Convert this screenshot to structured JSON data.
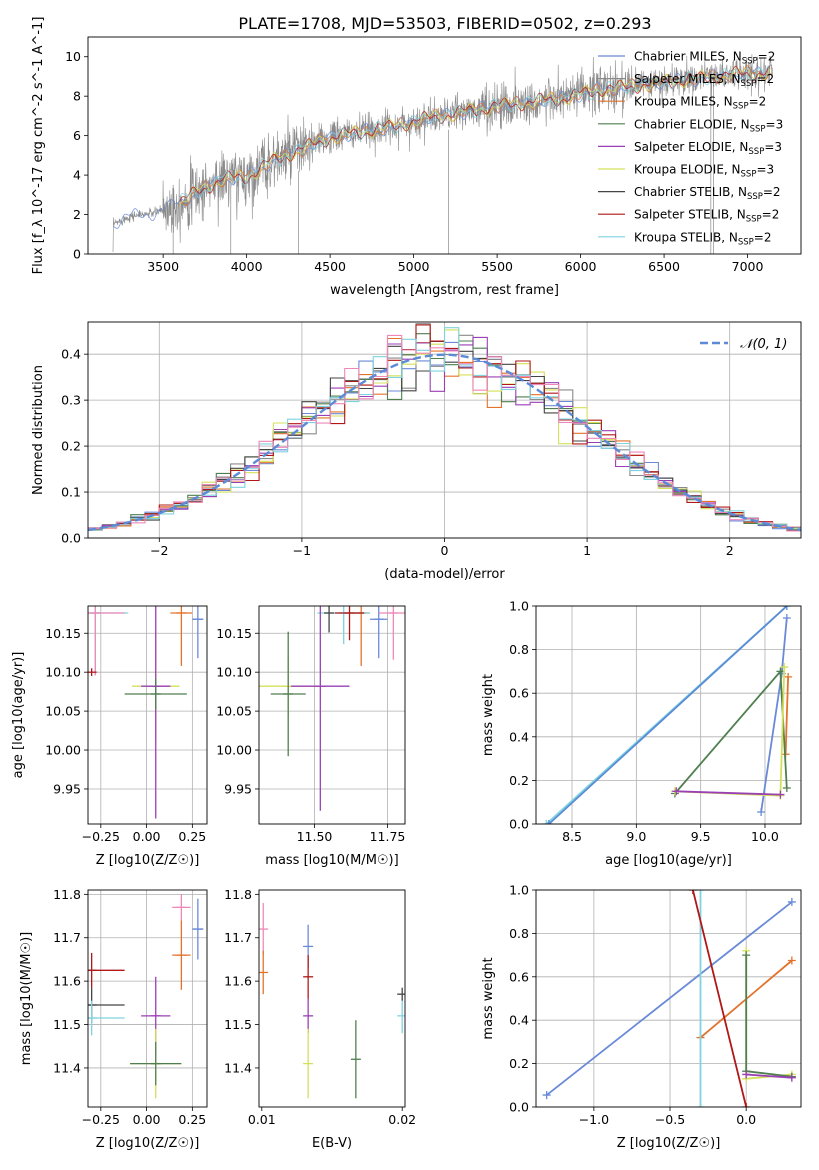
{
  "title": "PLATE=1708, MJD=53503, FIBERID=0502, z=0.293",
  "colors": {
    "chabrier_miles": "#6a8ad8",
    "salpeter_miles": "#8a8a8a",
    "kroupa_miles": "#e2732c",
    "chabrier_elodie": "#4f7f4f",
    "salpeter_elodie": "#9b3fb5",
    "kroupa_elodie": "#d4e05a",
    "chabrier_stelib": "#444444",
    "salpeter_stelib": "#b01818",
    "kroupa_stelib": "#7fd3e0",
    "pink": "#ef88b8",
    "normal": "#5b8bd6",
    "grid": "#b0b0b0"
  },
  "chart_data": [
    {
      "type": "line",
      "name": "spectrum",
      "xlabel": "wavelength [Angstrom, rest frame]",
      "ylabel": "Flux [f_λ 10^-17 erg cm^-2 s^-1 A^-1]",
      "xlim": [
        3050,
        7320
      ],
      "ylim": [
        0,
        11
      ],
      "xticks": [
        3500,
        4000,
        4500,
        5000,
        5500,
        6000,
        6500,
        7000
      ],
      "yticks": [
        0,
        2,
        4,
        6,
        8,
        10
      ],
      "grid": false,
      "legend_position": "top-right",
      "legend": [
        {
          "label": "Chabrier MILES, N",
          "sub": "SSP",
          "suffix": "=2"
        },
        {
          "label": "Salpeter MILES, N",
          "sub": "SSP",
          "suffix": "=2"
        },
        {
          "label": "Kroupa MILES, N",
          "sub": "SSP",
          "suffix": "=2"
        },
        {
          "label": "Chabrier ELODIE, N",
          "sub": "SSP",
          "suffix": "=3"
        },
        {
          "label": "Salpeter ELODIE, N",
          "sub": "SSP",
          "suffix": "=3"
        },
        {
          "label": "Kroupa ELODIE, N",
          "sub": "SSP",
          "suffix": "=3"
        },
        {
          "label": "Chabrier STELIB, N",
          "sub": "SSP",
          "suffix": "=2"
        },
        {
          "label": "Salpeter STELIB, N",
          "sub": "SSP",
          "suffix": "=2"
        },
        {
          "label": "Kroupa STELIB, N",
          "sub": "SSP",
          "suffix": "=2"
        }
      ],
      "continuum": {
        "x": [
          3200,
          3300,
          3450,
          3550,
          3700,
          3850,
          4000,
          4150,
          4300,
          4500,
          4700,
          4900,
          5100,
          5300,
          5500,
          5700,
          5900,
          6100,
          6300,
          6500,
          6700,
          6900,
          7100
        ],
        "y": [
          1.5,
          1.9,
          2.1,
          2.4,
          3.1,
          3.8,
          3.9,
          4.7,
          5.2,
          5.9,
          6.2,
          6.5,
          6.9,
          7.2,
          7.5,
          7.7,
          7.9,
          8.3,
          8.5,
          8.7,
          8.9,
          9.1,
          9.2
        ]
      }
    },
    {
      "type": "line",
      "name": "residual histogram",
      "xlabel": "(data-model)/error",
      "ylabel": "Normed distribution",
      "xlim": [
        -2.5,
        2.5
      ],
      "ylim": [
        0,
        0.47
      ],
      "xticks": [
        -2,
        -1,
        0,
        1,
        2
      ],
      "yticks": [
        0.0,
        0.1,
        0.2,
        0.3,
        0.4
      ],
      "grid": true,
      "legend_position": "top-right",
      "legend": [
        {
          "label": "𝒩(0, 1)"
        }
      ],
      "normal_curve": {
        "mean": 0,
        "sigma": 1
      },
      "histogram_bins": {
        "start": -2.5,
        "width": 0.1,
        "count": 50
      }
    },
    {
      "type": "scatter",
      "name": "age vs metallicity",
      "xlabel": "Z [log10(Z/Z☉)]",
      "ylabel": "age [log10(age/yr)]",
      "xlim": [
        -0.32,
        0.33
      ],
      "ylim": [
        9.905,
        10.185
      ],
      "xticks": [
        -0.25,
        0,
        0.25
      ],
      "yticks": [
        9.95,
        10.0,
        10.05,
        10.1,
        10.15
      ],
      "grid": true,
      "points": [
        {
          "x": 0.28,
          "y": 10.168,
          "xerr": 0.03,
          "yerr": 0.05,
          "color": "chabrier_miles"
        },
        {
          "x": 0.19,
          "y": 10.176,
          "xerr": 0.06,
          "yerr": 0.068,
          "color": "kroupa_miles"
        },
        {
          "x": -0.28,
          "y": 10.176,
          "xerr": 0.18,
          "yerr": 0.08,
          "color": "kroupa_stelib"
        },
        {
          "x": -0.28,
          "y": 10.176,
          "xerr": 0.16,
          "yerr": 0.08,
          "color": "pink"
        },
        {
          "x": 0.05,
          "y": 10.082,
          "xerr": 0.13,
          "yerr": 0.07,
          "color": "kroupa_elodie"
        },
        {
          "x": 0.05,
          "y": 10.082,
          "xerr": 0.08,
          "yerr": 0.17,
          "color": "salpeter_elodie"
        },
        {
          "x": 0.05,
          "y": 10.072,
          "xerr": 0.17,
          "yerr": 0.02,
          "color": "chabrier_elodie"
        },
        {
          "x": -0.3,
          "y": 10.1,
          "xerr": 0.0,
          "yerr": 0.005,
          "color": "salpeter_stelib"
        }
      ]
    },
    {
      "type": "scatter",
      "name": "age vs mass",
      "xlabel": "mass [log10(M/M☉)]",
      "ylabel": "",
      "xlim": [
        11.31,
        11.81
      ],
      "ylim": [
        9.905,
        10.185
      ],
      "xticks": [
        11.5,
        11.75
      ],
      "yticks": [
        9.95,
        10.0,
        10.05,
        10.1,
        10.15
      ],
      "grid": true,
      "points": [
        {
          "x": 11.72,
          "y": 10.168,
          "xerr": 0.03,
          "yerr": 0.05,
          "color": "chabrier_miles"
        },
        {
          "x": 11.66,
          "y": 10.176,
          "xerr": 0.03,
          "yerr": 0.068,
          "color": "kroupa_miles"
        },
        {
          "x": 11.77,
          "y": 10.176,
          "xerr": 0.05,
          "yerr": 0.06,
          "color": "pink"
        },
        {
          "x": 11.6,
          "y": 10.176,
          "xerr": 0.09,
          "yerr": 0.04,
          "color": "kroupa_stelib"
        },
        {
          "x": 11.62,
          "y": 10.176,
          "xerr": 0.05,
          "yerr": 0.035,
          "color": "salpeter_stelib"
        },
        {
          "x": 11.41,
          "y": 10.082,
          "xerr": 0.1,
          "yerr": 0.04,
          "color": "kroupa_elodie"
        },
        {
          "x": 11.52,
          "y": 10.082,
          "xerr": 0.1,
          "yerr": 0.16,
          "color": "salpeter_elodie"
        },
        {
          "x": 11.41,
          "y": 10.072,
          "xerr": 0.06,
          "yerr": 0.08,
          "color": "chabrier_elodie"
        },
        {
          "x": 11.55,
          "y": 10.176,
          "xerr": 0.0,
          "yerr": 0.025,
          "color": "chabrier_stelib"
        }
      ]
    },
    {
      "type": "line",
      "name": "mass weight vs age",
      "xlabel": "age [log10(age/yr)]",
      "ylabel": "mass weight",
      "xlim": [
        8.22,
        10.28
      ],
      "ylim": [
        0,
        1.0
      ],
      "xticks": [
        8.5,
        9.0,
        9.5,
        10.0
      ],
      "yticks": [
        0.0,
        0.2,
        0.4,
        0.6,
        0.8,
        1.0
      ],
      "grid": true,
      "series": [
        {
          "color": "chabrier_miles",
          "x": [
            9.97,
            10.13,
            10.17
          ],
          "y": [
            0.055,
            0.69,
            0.945
          ]
        },
        {
          "color": "kroupa_miles",
          "x": [
            10.16,
            10.18
          ],
          "y": [
            0.32,
            0.675
          ]
        },
        {
          "color": "kroupa_stelib",
          "x": [
            8.3,
            10.17
          ],
          "y": [
            0.0,
            1.0
          ]
        },
        {
          "color": "normal",
          "x": [
            8.32,
            10.17
          ],
          "y": [
            0.0,
            1.0
          ]
        },
        {
          "color": "chabrier_elodie",
          "x": [
            9.3,
            10.12,
            10.17
          ],
          "y": [
            0.14,
            0.7,
            0.165
          ]
        },
        {
          "color": "kroupa_elodie",
          "x": [
            9.3,
            10.12,
            10.15
          ],
          "y": [
            0.15,
            0.13,
            0.72
          ]
        },
        {
          "color": "salpeter_elodie",
          "x": [
            9.31,
            10.12
          ],
          "y": [
            0.15,
            0.135
          ]
        }
      ]
    },
    {
      "type": "scatter",
      "name": "mass vs metallicity",
      "xlabel": "Z [log10(Z/Z☉)]",
      "ylabel": "mass [log10(M/M☉)]",
      "xlim": [
        -0.32,
        0.33
      ],
      "ylim": [
        11.31,
        11.81
      ],
      "xticks": [
        -0.25,
        0,
        0.25
      ],
      "yticks": [
        11.4,
        11.5,
        11.6,
        11.7,
        11.8
      ],
      "grid": true,
      "points": [
        {
          "x": 0.28,
          "y": 11.72,
          "xerr": 0.03,
          "yerr": 0.07,
          "color": "chabrier_miles"
        },
        {
          "x": 0.19,
          "y": 11.77,
          "xerr": 0.05,
          "yerr": 0.03,
          "color": "pink"
        },
        {
          "x": 0.19,
          "y": 11.66,
          "xerr": 0.05,
          "yerr": 0.08,
          "color": "kroupa_miles"
        },
        {
          "x": -0.3,
          "y": 11.625,
          "xerr": 0.18,
          "yerr": 0.04,
          "color": "salpeter_stelib"
        },
        {
          "x": -0.3,
          "y": 11.545,
          "xerr": 0.18,
          "yerr": 0.04,
          "color": "chabrier_stelib"
        },
        {
          "x": -0.3,
          "y": 11.515,
          "xerr": 0.18,
          "yerr": 0.04,
          "color": "kroupa_stelib"
        },
        {
          "x": 0.05,
          "y": 11.52,
          "xerr": 0.08,
          "yerr": 0.09,
          "color": "salpeter_elodie"
        },
        {
          "x": 0.05,
          "y": 11.41,
          "xerr": 0.14,
          "yerr": 0.08,
          "color": "kroupa_elodie"
        },
        {
          "x": 0.05,
          "y": 11.41,
          "xerr": 0.14,
          "yerr": 0.05,
          "color": "chabrier_elodie"
        }
      ]
    },
    {
      "type": "scatter",
      "name": "mass vs reddening",
      "xlabel": "E(B-V)",
      "ylabel": "",
      "xlim": [
        0.0098,
        0.0202
      ],
      "ylim": [
        11.31,
        11.81
      ],
      "xticks": [
        0.01,
        0.02
      ],
      "yticks": [
        11.4,
        11.5,
        11.6,
        11.7,
        11.8
      ],
      "grid": false,
      "points": [
        {
          "x": 0.0101,
          "y": 11.72,
          "xerr": 0,
          "yerr": 0.06,
          "color": "pink"
        },
        {
          "x": 0.0101,
          "y": 11.62,
          "xerr": 0,
          "yerr": 0.05,
          "color": "kroupa_miles"
        },
        {
          "x": 0.0133,
          "y": 11.68,
          "xerr": 0,
          "yerr": 0.05,
          "color": "chabrier_miles"
        },
        {
          "x": 0.0133,
          "y": 11.61,
          "xerr": 0,
          "yerr": 0.05,
          "color": "salpeter_stelib"
        },
        {
          "x": 0.0133,
          "y": 11.52,
          "xerr": 0,
          "yerr": 0.04,
          "color": "salpeter_elodie"
        },
        {
          "x": 0.0133,
          "y": 11.41,
          "xerr": 0,
          "yerr": 0.08,
          "color": "kroupa_elodie"
        },
        {
          "x": 0.0167,
          "y": 11.42,
          "xerr": 0,
          "yerr": 0.09,
          "color": "chabrier_elodie"
        },
        {
          "x": 0.02,
          "y": 11.52,
          "xerr": 0,
          "yerr": 0.04,
          "color": "kroupa_stelib"
        },
        {
          "x": 0.02,
          "y": 11.57,
          "xerr": 0,
          "yerr": 0.015,
          "color": "chabrier_stelib"
        }
      ]
    },
    {
      "type": "line",
      "name": "mass weight vs metallicity",
      "xlabel": "Z [log10(Z/Z☉)]",
      "ylabel": "mass weight",
      "xlim": [
        -1.38,
        0.36
      ],
      "ylim": [
        0,
        1.0
      ],
      "xticks": [
        -1.0,
        -0.5,
        0.0
      ],
      "yticks": [
        0.0,
        0.2,
        0.4,
        0.6,
        0.8,
        1.0
      ],
      "grid": true,
      "series": [
        {
          "color": "chabrier_miles",
          "x": [
            -1.31,
            0.3
          ],
          "y": [
            0.055,
            0.945
          ]
        },
        {
          "color": "kroupa_miles",
          "x": [
            -0.3,
            0.3
          ],
          "y": [
            0.32,
            0.675
          ]
        },
        {
          "color": "kroupa_stelib",
          "x": [
            -0.3,
            -0.3
          ],
          "y": [
            0.0,
            1.0
          ]
        },
        {
          "color": "salpeter_stelib",
          "x": [
            -0.35,
            0.0
          ],
          "y": [
            1.0,
            0.0
          ]
        },
        {
          "color": "kroupa_elodie",
          "x": [
            0.0,
            0.0,
            0.3
          ],
          "y": [
            0.72,
            0.13,
            0.15
          ]
        },
        {
          "color": "chabrier_elodie",
          "x": [
            0.0,
            0.0,
            0.3
          ],
          "y": [
            0.7,
            0.165,
            0.14
          ]
        },
        {
          "color": "salpeter_elodie",
          "x": [
            0.0,
            0.3
          ],
          "y": [
            0.15,
            0.135
          ]
        }
      ]
    }
  ]
}
